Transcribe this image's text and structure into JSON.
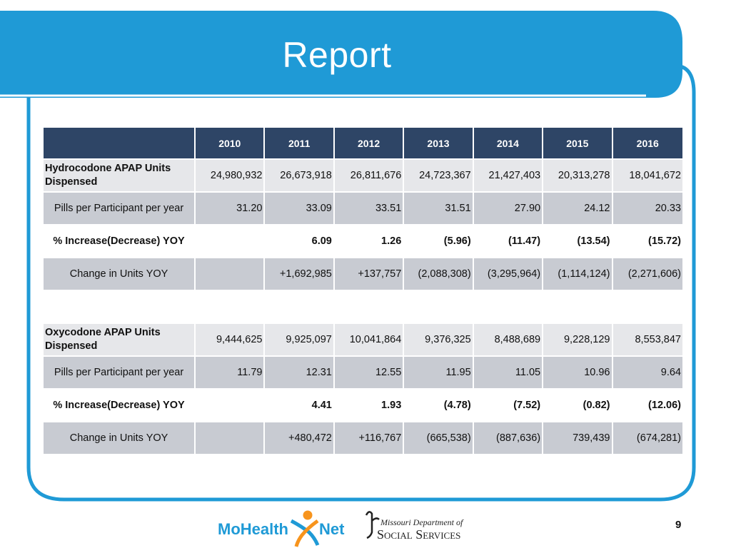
{
  "slide": {
    "title": "Report",
    "page_number": "9",
    "colors": {
      "banner": "#1f9ad6",
      "header": "#2e4566",
      "frame": "#1f9ad6",
      "accent": "#f7941d"
    }
  },
  "table": {
    "years": [
      "2010",
      "2011",
      "2012",
      "2013",
      "2014",
      "2015",
      "2016"
    ],
    "hydrocodone": {
      "units_label": "Hydrocodone APAP Units Dispensed",
      "units": [
        "24,980,932",
        "26,673,918",
        "26,811,676",
        "24,723,367",
        "21,427,403",
        "20,313,278",
        "18,041,672"
      ],
      "ppp_label": "Pills per Participant per year",
      "ppp": [
        "31.20",
        "33.09",
        "33.51",
        "31.51",
        "27.90",
        "24.12",
        "20.33"
      ],
      "pct_label": "% Increase(Decrease) YOY",
      "pct": [
        "",
        "6.09",
        "1.26",
        "(5.96)",
        "(11.47)",
        "(13.54)",
        "(15.72)"
      ],
      "change_label": "Change in Units YOY",
      "change": [
        "",
        "+1,692,985",
        "+137,757",
        "(2,088,308)",
        "(3,295,964)",
        "(1,114,124)",
        "(2,271,606)"
      ]
    },
    "oxycodone": {
      "units_label": "Oxycodone APAP Units Dispensed",
      "units": [
        "9,444,625",
        "9,925,097",
        "10,041,864",
        "9,376,325",
        "8,488,689",
        "9,228,129",
        "8,553,847"
      ],
      "ppp_label": "Pills per Participant per year",
      "ppp": [
        "11.79",
        "12.31",
        "12.55",
        "11.95",
        "11.05",
        "10.96",
        "9.64"
      ],
      "pct_label": "% Increase(Decrease) YOY",
      "pct": [
        "",
        "4.41",
        "1.93",
        "(4.78)",
        "(7.52)",
        "(0.82)",
        "(12.06)"
      ],
      "change_label": "Change in Units YOY",
      "change": [
        "",
        "+480,472",
        "+116,767",
        "(665,538)",
        "(887,636)",
        "739,439",
        "(674,281)"
      ]
    }
  },
  "logos": {
    "mohealthnet_a": "MoHealth",
    "mohealthnet_b": "Net",
    "dss_line1": "Missouri Department of",
    "dss_line2": "Social Services"
  }
}
